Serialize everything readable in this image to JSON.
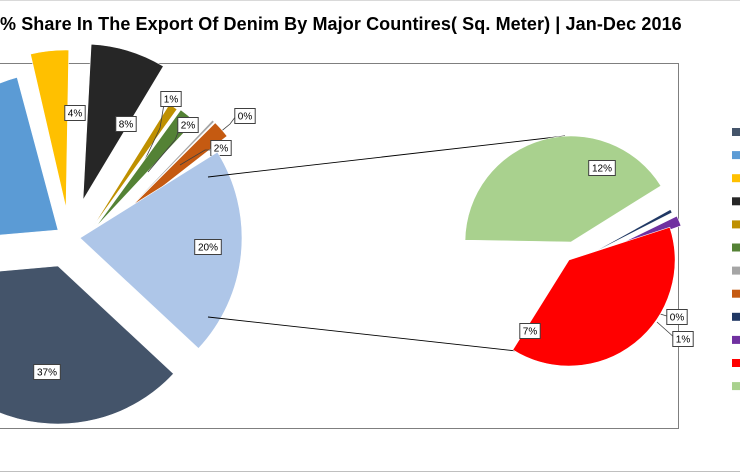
{
  "title": "%  Share In The Export Of Denim By Major Countires( Sq. Meter)  | Jan-Dec 2016",
  "chart_data": {
    "type": "pie",
    "subtype": "pie-of-pie",
    "main_pie": [
      {
        "value": 37,
        "label": "37%",
        "color": "#44546a"
      },
      {
        "value": 21,
        "label": "",
        "color": "#5b9bd5"
      },
      {
        "value": 4,
        "label": "4%",
        "color": "#ffc000"
      },
      {
        "value": 8,
        "label": "8%",
        "color": "#262626"
      },
      {
        "value": 1,
        "label": "1%",
        "color": "#bf9000"
      },
      {
        "value": 2,
        "label": "2%",
        "color": "#548235"
      },
      {
        "value": 0,
        "label": "0%",
        "color": "#a5a5a5"
      },
      {
        "value": 2,
        "label": "2%",
        "color": "#c55a11"
      },
      {
        "value": 20,
        "label": "20%",
        "color": "#aec6e8",
        "note": "other"
      }
    ],
    "secondary_pie": [
      {
        "value": 12,
        "label": "12%",
        "color": "#a9d18e"
      },
      {
        "value": 0,
        "label": "0%",
        "color": "#203864"
      },
      {
        "value": 1,
        "label": "1%",
        "color": "#7030a0"
      },
      {
        "value": 7,
        "label": "7%",
        "color": "#ff0000"
      }
    ],
    "legend": {
      "position": "right",
      "swatches": [
        "#44546a",
        "#5b9bd5",
        "#ffc000",
        "#262626",
        "#bf9000",
        "#548235",
        "#a5a5a5",
        "#c55a11",
        "#203864",
        "#7030a0",
        "#ff0000",
        "#a9d18e"
      ]
    }
  }
}
